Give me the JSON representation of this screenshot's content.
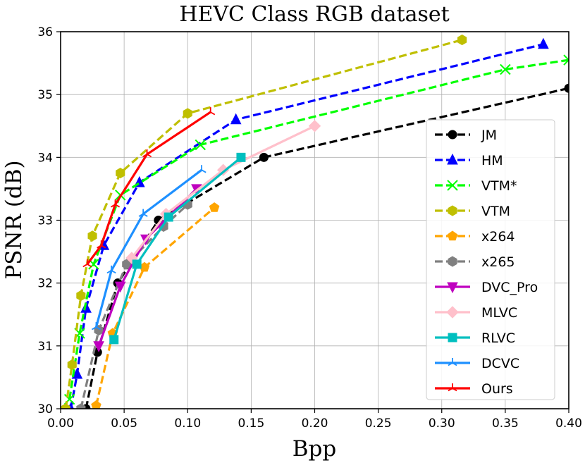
{
  "chart_data": {
    "type": "line",
    "title": "HEVC Class RGB dataset",
    "xlabel": "Bpp",
    "ylabel": "PSNR (dB)",
    "xlim": [
      0.0,
      0.4
    ],
    "ylim": [
      30,
      36
    ],
    "grid": true,
    "legend_position": "right",
    "xticks": [
      0.0,
      0.05,
      0.1,
      0.15,
      0.2,
      0.25,
      0.3,
      0.35,
      0.4
    ],
    "xtick_labels": [
      "0.00",
      "0.05",
      "0.10",
      "0.15",
      "0.20",
      "0.25",
      "0.30",
      "0.35",
      "0.40"
    ],
    "yticks": [
      30,
      31,
      32,
      33,
      34,
      35,
      36
    ],
    "ytick_labels": [
      "30",
      "31",
      "32",
      "33",
      "34",
      "35",
      "36"
    ],
    "series": [
      {
        "name": "JM",
        "color": "#000000",
        "dash": "dashed",
        "marker": "circle",
        "x": [
          0.02,
          0.029,
          0.045,
          0.077,
          0.16,
          0.4
        ],
        "y": [
          30.0,
          30.9,
          32.0,
          33.0,
          34.0,
          35.1
        ]
      },
      {
        "name": "HM",
        "color": "#0000ff",
        "dash": "dashed",
        "marker": "triangle-up",
        "x": [
          0.008,
          0.013,
          0.02,
          0.034,
          0.062,
          0.138,
          0.38
        ],
        "y": [
          30.0,
          30.55,
          31.6,
          32.6,
          33.6,
          34.6,
          35.8
        ]
      },
      {
        "name": "VTM*",
        "color": "#00ff00",
        "dash": "dashed",
        "marker": "x",
        "x": [
          0.007,
          0.015,
          0.026,
          0.047,
          0.11,
          0.35,
          0.4
        ],
        "y": [
          30.15,
          31.2,
          32.3,
          33.4,
          34.2,
          35.4,
          35.55
        ]
      },
      {
        "name": "VTM",
        "color": "#bfbf00",
        "dash": "dashed",
        "marker": "hexagon",
        "x": [
          0.004,
          0.009,
          0.016,
          0.025,
          0.047,
          0.1,
          0.316
        ],
        "y": [
          30.0,
          30.7,
          31.8,
          32.75,
          33.75,
          34.7,
          35.87
        ]
      },
      {
        "name": "x264",
        "color": "#ffa500",
        "dash": "dashed",
        "marker": "pentagon",
        "x": [
          0.028,
          0.041,
          0.066,
          0.121
        ],
        "y": [
          30.05,
          31.2,
          32.25,
          33.2
        ]
      },
      {
        "name": "x265",
        "color": "#808080",
        "dash": "dashed",
        "marker": "hexagon",
        "x": [
          0.016,
          0.03,
          0.052,
          0.081,
          0.1
        ],
        "y": [
          30.0,
          31.25,
          32.3,
          32.9,
          33.25
        ]
      },
      {
        "name": "DVC_Pro",
        "color": "#bf00bf",
        "dash": "solid",
        "marker": "triangle-down",
        "x": [
          0.03,
          0.047,
          0.067,
          0.107
        ],
        "y": [
          31.0,
          31.95,
          32.7,
          33.5
        ]
      },
      {
        "name": "MLVC",
        "color": "#ffc0cb",
        "dash": "solid",
        "marker": "diamond",
        "x": [
          0.056,
          0.083,
          0.128,
          0.2
        ],
        "y": [
          32.4,
          33.1,
          33.8,
          34.5
        ]
      },
      {
        "name": "RLVC",
        "color": "#00bfbf",
        "dash": "solid",
        "marker": "square",
        "x": [
          0.042,
          0.06,
          0.085,
          0.142
        ],
        "y": [
          31.1,
          32.3,
          33.05,
          34.0
        ]
      },
      {
        "name": "DCVC",
        "color": "#1e90ff",
        "dash": "solid",
        "marker": "tri",
        "x": [
          0.028,
          0.04,
          0.065,
          0.111
        ],
        "y": [
          31.3,
          32.2,
          33.1,
          33.8
        ]
      },
      {
        "name": "Ours",
        "color": "#ff0000",
        "dash": "solid",
        "marker": "tri",
        "x": [
          0.021,
          0.032,
          0.043,
          0.068,
          0.118
        ],
        "y": [
          32.3,
          32.6,
          33.25,
          34.05,
          34.72
        ]
      }
    ]
  }
}
